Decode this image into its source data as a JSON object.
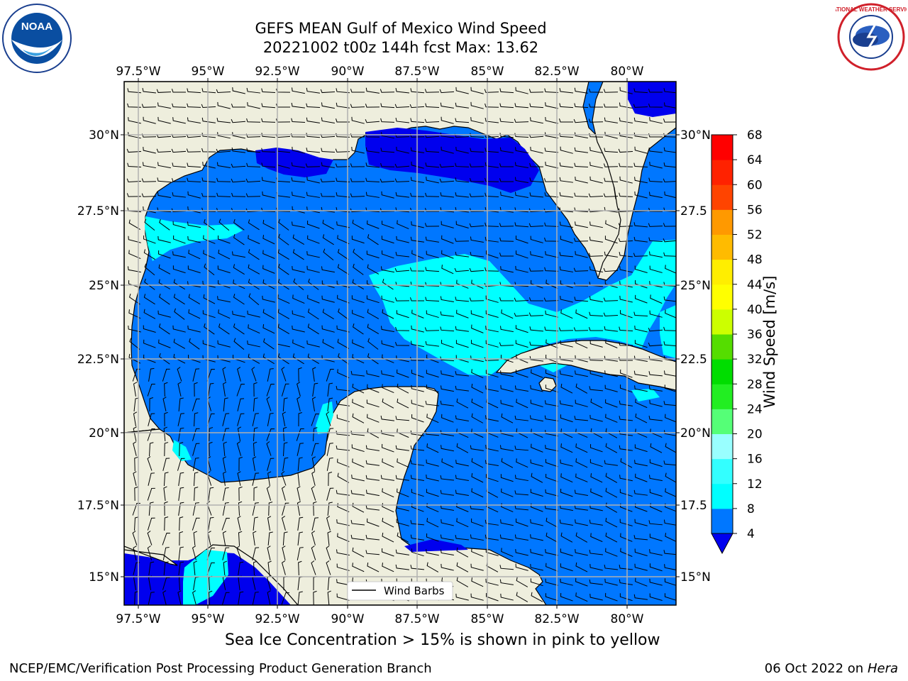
{
  "header": {
    "title": "GEFS MEAN Gulf of Mexico Wind Speed",
    "subtitle": "20221002 t00z 144h fcst   Max: 13.62"
  },
  "logos": {
    "noaa_text": "NOAA",
    "noaa_ring": "NATIONAL OCEANIC AND ATMOSPHERIC ADMINISTRATION · U.S. DEPARTMENT OF COMMERCE",
    "nws_ring": "NATIONAL WEATHER SERVICE"
  },
  "map": {
    "lon_ticks": [
      "97.5°W",
      "95°W",
      "92.5°W",
      "90°W",
      "87.5°W",
      "85°W",
      "82.5°W",
      "80°W"
    ],
    "lat_ticks_left": [
      "30°N",
      "27.5°N",
      "25°N",
      "22.5°N",
      "20°N",
      "17.5°N",
      "15°N"
    ],
    "lat_ticks_right": [
      "30°N",
      "27.5",
      "25°N",
      "22.5",
      "20°N",
      "17.5",
      "15°N"
    ],
    "legend_label": "Wind Barbs",
    "colors": {
      "land": "#eeeedd",
      "ws_lt4": "#0000ee",
      "ws_4_8": "#0077ff",
      "ws_8_12": "#00ffff",
      "grid": "#b0b0b0"
    }
  },
  "colorbar": {
    "label": "Wind Speed [m/s]",
    "ticks": [
      "4",
      "8",
      "12",
      "16",
      "20",
      "24",
      "28",
      "32",
      "36",
      "40",
      "44",
      "48",
      "52",
      "56",
      "60",
      "64",
      "68"
    ],
    "colors": [
      "#0077ff",
      "#00ffff",
      "#33ffff",
      "#66ffff",
      "#99ffff",
      "#55ff77",
      "#22ee22",
      "#00dd00",
      "#55dd00",
      "#99ee00",
      "#ccff00",
      "#ffff00",
      "#ffee00",
      "#ffbb00",
      "#ff9900",
      "#ff7700",
      "#ff4400",
      "#ff2200",
      "#ff0000"
    ],
    "under_color": "#0000ee"
  },
  "footer": {
    "note": "Sea Ice Concentration > 15% is shown in pink to yellow",
    "left": "NCEP/EMC/Verification Post Processing Product Generation Branch",
    "right_date": "06 Oct 2022 on ",
    "right_host": "Hera"
  }
}
